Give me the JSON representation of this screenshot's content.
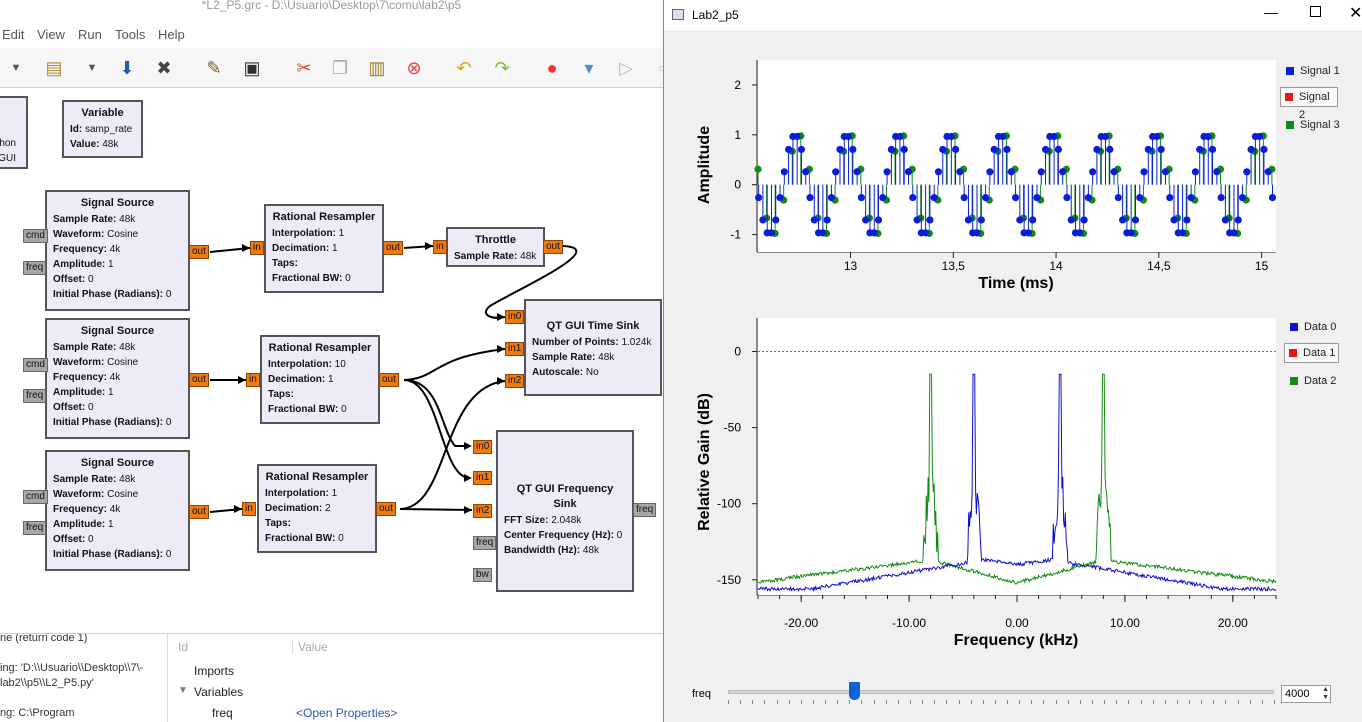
{
  "grc": {
    "title": "*L2_P5.grc - D:\\Usuario\\Desktop\\7\\comu\\lab2\\p5",
    "menu": [
      "Edit",
      "View",
      "Run",
      "Tools",
      "Help"
    ],
    "blocks": {
      "partial": {
        "line1": "hon",
        "line2": "GUI"
      },
      "variable": {
        "title": "Variable",
        "id_label": "Id:",
        "id_value": "samp_rate",
        "value_label": "Value:",
        "value": "48k"
      },
      "source_fields": {
        "sample_rate": "Sample Rate:",
        "waveform": "Waveform:",
        "frequency": "Frequency:",
        "amplitude": "Amplitude:",
        "offset": "Offset:",
        "phase": "Initial Phase (Radians):"
      },
      "sources": [
        {
          "title": "Signal Source",
          "sample_rate": "48k",
          "waveform": "Cosine",
          "frequency": "4k",
          "amplitude": "1",
          "offset": "0",
          "phase": "0"
        },
        {
          "title": "Signal Source",
          "sample_rate": "48k",
          "waveform": "Cosine",
          "frequency": "4k",
          "amplitude": "1",
          "offset": "0",
          "phase": "0"
        },
        {
          "title": "Signal Source",
          "sample_rate": "48k",
          "waveform": "Cosine",
          "frequency": "4k",
          "amplitude": "1",
          "offset": "0",
          "phase": "0"
        }
      ],
      "resampler_fields": {
        "interp": "Interpolation:",
        "decim": "Decimation:",
        "taps": "Taps:",
        "fbw": "Fractional BW:"
      },
      "resamplers": [
        {
          "title": "Rational Resampler",
          "interp": "1",
          "decim": "1",
          "fbw": "0"
        },
        {
          "title": "Rational Resampler",
          "interp": "10",
          "decim": "1",
          "fbw": "0"
        },
        {
          "title": "Rational Resampler",
          "interp": "1",
          "decim": "2",
          "fbw": "0"
        }
      ],
      "throttle": {
        "title": "Throttle",
        "sr_label": "Sample Rate:",
        "sr": "48k"
      },
      "time_sink": {
        "title": "QT GUI Time Sink",
        "np_label": "Number of Points:",
        "np": "1.024k",
        "sr_label": "Sample Rate:",
        "sr": "48k",
        "as_label": "Autoscale:",
        "as": "No"
      },
      "freq_sink": {
        "title": "QT GUI Frequency Sink",
        "fft_label": "FFT Size:",
        "fft": "2.048k",
        "cf_label": "Center Frequency (Hz):",
        "cf": "0",
        "bw_label": "Bandwidth (Hz):",
        "bw": "48k"
      }
    },
    "ports": {
      "in": "in",
      "out": "out",
      "cmd": "cmd",
      "freq": "freq",
      "bw": "bw",
      "in0": "in0",
      "in1": "in1",
      "in2": "in2"
    },
    "bottom": {
      "console": [
        "ne (return code 1)",
        "ing: 'D:\\\\Usuario\\\\Desktop\\\\7\\-",
        "lab2\\\\p5\\\\L2_P5.py'",
        "ng: C:\\Program"
      ],
      "col_id": "Id",
      "col_value": "Value",
      "imports": "Imports",
      "variables": "Variables",
      "freq": "freq",
      "open_props": "<Open Properties>"
    }
  },
  "qt": {
    "title": "Lab2_p5",
    "time_plot": {
      "ylabel": "Amplitude",
      "xlabel": "Time (ms)",
      "yticks": [
        "2",
        "1",
        "0",
        "-1"
      ],
      "xticks": [
        "13",
        "13,5",
        "14",
        "14,5",
        "15"
      ],
      "legend": [
        "Signal 1",
        "Signal 2",
        "Signal 3"
      ]
    },
    "freq_plot": {
      "ylabel": "Relative Gain (dB)",
      "xlabel": "Frequency (kHz)",
      "yticks": [
        "0",
        "-50",
        "-100",
        "-150"
      ],
      "xticks": [
        "-20.00",
        "-10.00",
        "0.00",
        "10.00",
        "20.00"
      ],
      "legend": [
        "Data 0",
        "Data 1",
        "Data 2"
      ]
    },
    "slider": {
      "label": "freq",
      "value": "4000",
      "level_fraction": 0.23
    }
  },
  "chart_data": [
    {
      "type": "scatter",
      "xlabel": "Time (ms)",
      "ylabel": "Amplitude",
      "xlim": [
        12.55,
        15.07
      ],
      "ylim": [
        -1.35,
        2.5
      ],
      "series": [
        {
          "name": "Signal 1",
          "color": "#0a1ed8",
          "frequency_khz": 4,
          "sample_rate_khz": 48
        },
        {
          "name": "Signal 3",
          "color": "#138a13",
          "frequency_khz": 4,
          "sample_rate_khz": 24
        }
      ],
      "legend": "right"
    },
    {
      "type": "line",
      "xlabel": "Frequency (kHz)",
      "ylabel": "Relative Gain (dB)",
      "xlim": [
        -24,
        24
      ],
      "ylim": [
        -160,
        22
      ],
      "series": [
        {
          "name": "Data 0",
          "color": "#1010d0",
          "peaks_khz": [
            -4,
            4
          ],
          "peak_db": -15
        },
        {
          "name": "Data 2",
          "color": "#138a13",
          "peaks_khz": [
            -8,
            8
          ],
          "peak_db": -15
        }
      ],
      "reference_db": 0,
      "legend": "right"
    }
  ]
}
